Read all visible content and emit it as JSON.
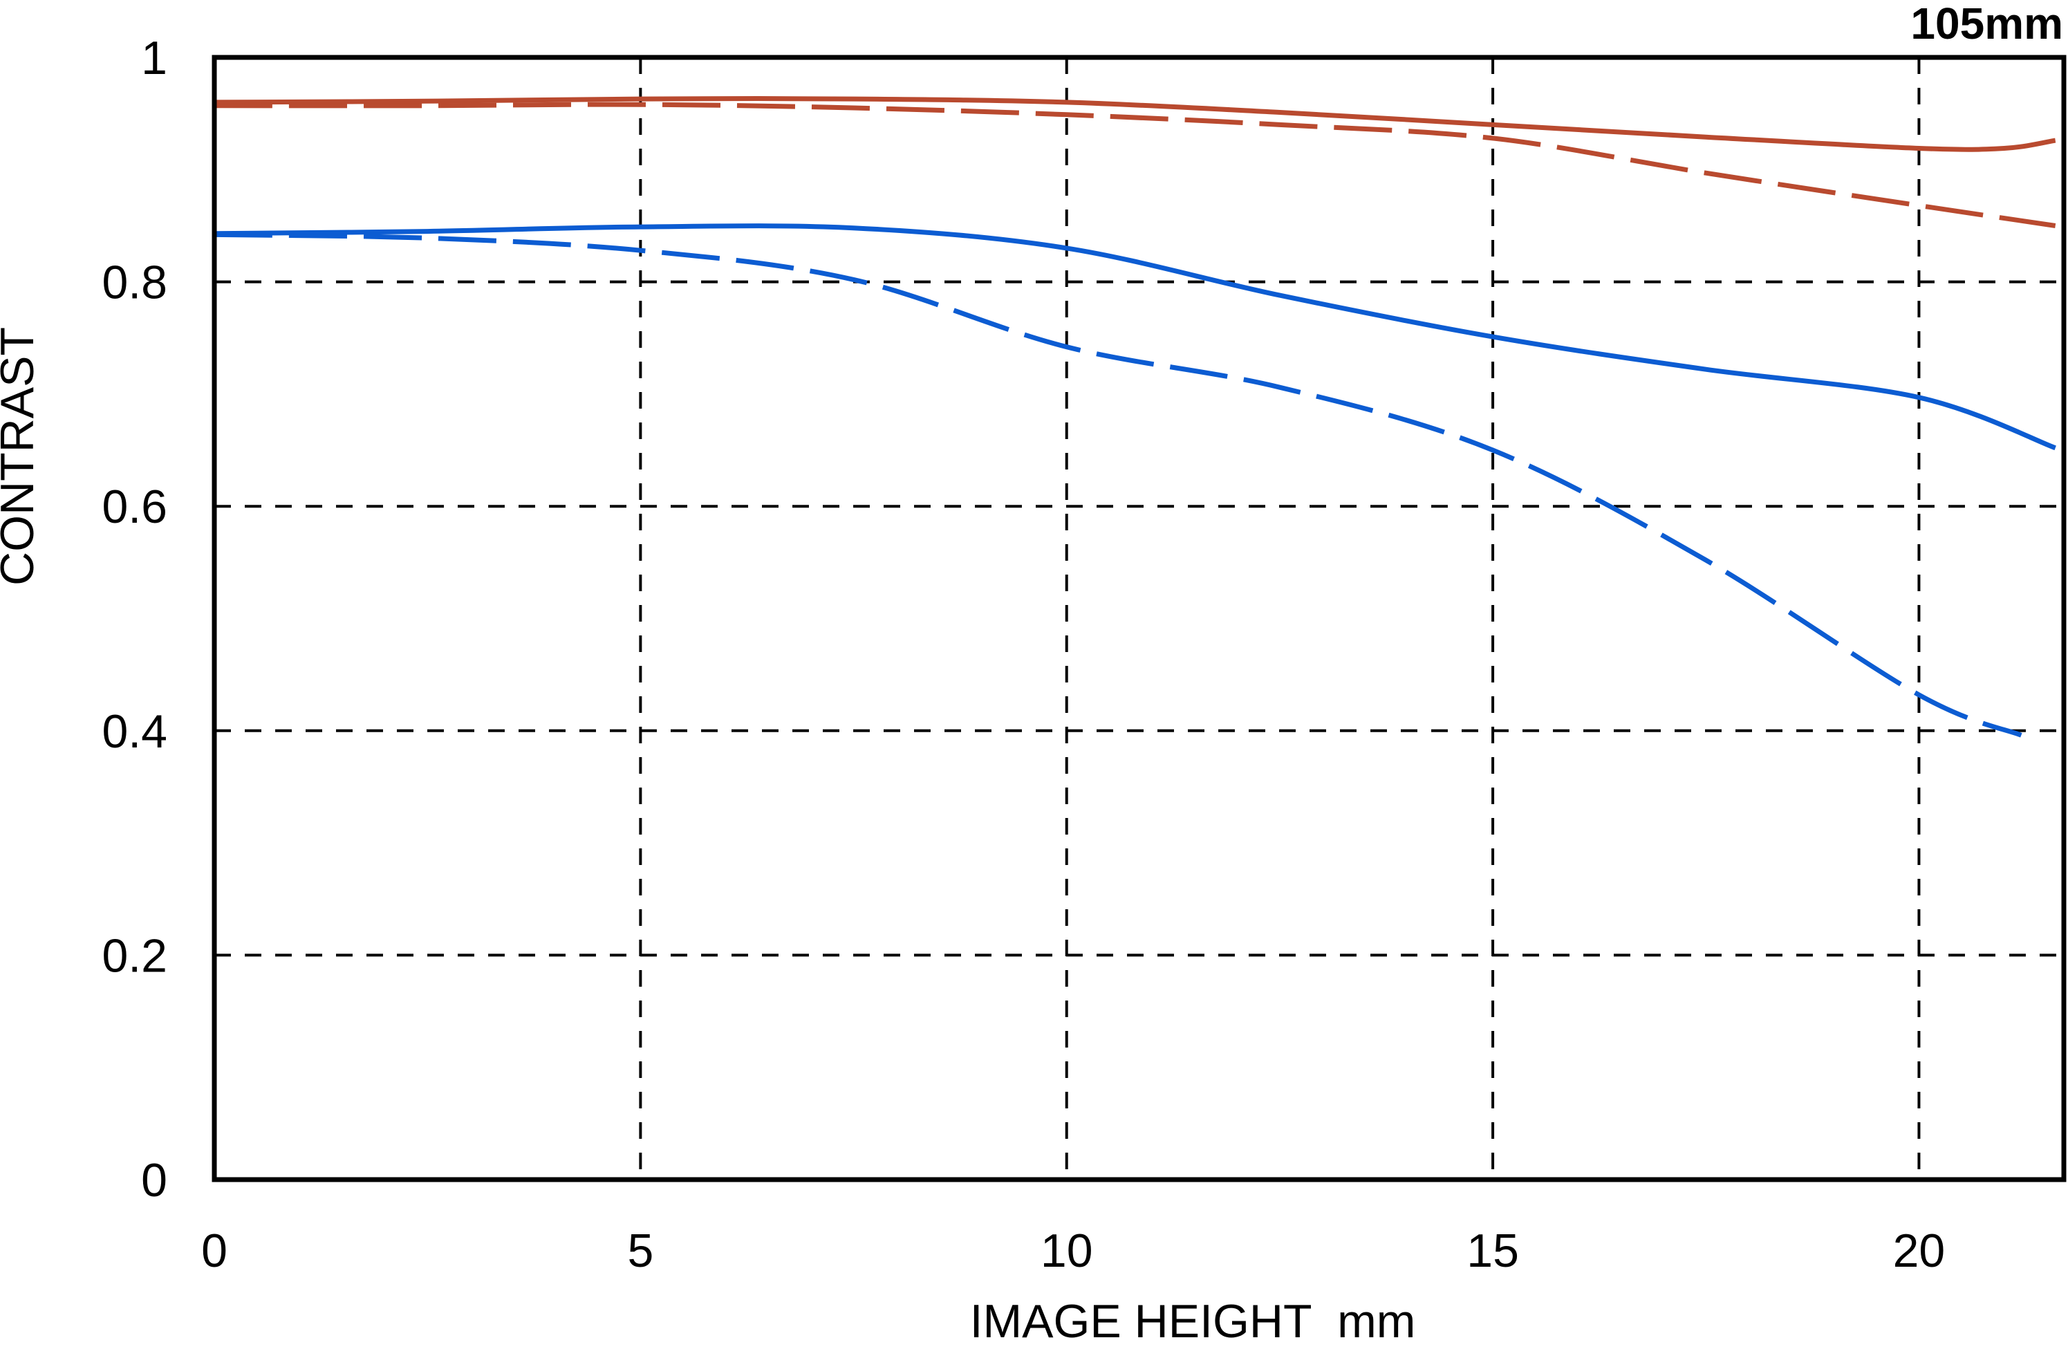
{
  "title": "105mm",
  "axes": {
    "xlabel": "IMAGE HEIGHT  mm",
    "ylabel": "CONTRAST"
  },
  "colors": {
    "red_line": "#B94A2F",
    "blue_line": "#0C5CD2",
    "axis": "#000000",
    "background": "#FFFFFF"
  },
  "chart_data": {
    "type": "line",
    "title": "105mm",
    "xlabel": "IMAGE HEIGHT  mm",
    "ylabel": "CONTRAST",
    "xlim": [
      0,
      21.7
    ],
    "ylim": [
      0,
      1
    ],
    "x_ticks": [
      0,
      5,
      10,
      15,
      20
    ],
    "y_ticks": [
      0,
      0.2,
      0.4,
      0.6,
      0.8,
      1
    ],
    "grid": "dashed black gridlines at x=5,10,15,20 and y=0.2,0.4,0.6,0.8; solid rectangular border",
    "legend_position": "none",
    "series": [
      {
        "name": "red-solid",
        "color": "#B94A2F",
        "style": "solid",
        "points": [
          [
            0,
            0.96
          ],
          [
            2.5,
            0.961
          ],
          [
            5,
            0.963
          ],
          [
            7.5,
            0.963
          ],
          [
            10,
            0.96
          ],
          [
            12.5,
            0.951
          ],
          [
            15,
            0.94
          ],
          [
            17.5,
            0.929
          ],
          [
            20,
            0.919
          ],
          [
            21.0,
            0.919
          ],
          [
            21.6,
            0.926
          ]
        ]
      },
      {
        "name": "red-dashed",
        "color": "#B94A2F",
        "style": "dashed",
        "points": [
          [
            0,
            0.957
          ],
          [
            2.5,
            0.957
          ],
          [
            5,
            0.958
          ],
          [
            7.5,
            0.955
          ],
          [
            10,
            0.949
          ],
          [
            12.5,
            0.94
          ],
          [
            15,
            0.928
          ],
          [
            17.5,
            0.897
          ],
          [
            20,
            0.868
          ],
          [
            21.6,
            0.85
          ]
        ]
      },
      {
        "name": "blue-solid",
        "color": "#0C5CD2",
        "style": "solid",
        "points": [
          [
            0,
            0.843
          ],
          [
            2.5,
            0.845
          ],
          [
            5,
            0.849
          ],
          [
            7.5,
            0.848
          ],
          [
            10,
            0.83
          ],
          [
            12.5,
            0.788
          ],
          [
            15,
            0.751
          ],
          [
            17.5,
            0.722
          ],
          [
            20,
            0.697
          ],
          [
            21.6,
            0.652
          ]
        ]
      },
      {
        "name": "blue-dashed",
        "color": "#0C5CD2",
        "style": "dashed",
        "points": [
          [
            0,
            0.842
          ],
          [
            2.5,
            0.839
          ],
          [
            5,
            0.828
          ],
          [
            7.5,
            0.802
          ],
          [
            10,
            0.742
          ],
          [
            12.5,
            0.706
          ],
          [
            15,
            0.65
          ],
          [
            17.5,
            0.552
          ],
          [
            20,
            0.432
          ],
          [
            21.2,
            0.396
          ]
        ]
      }
    ]
  }
}
